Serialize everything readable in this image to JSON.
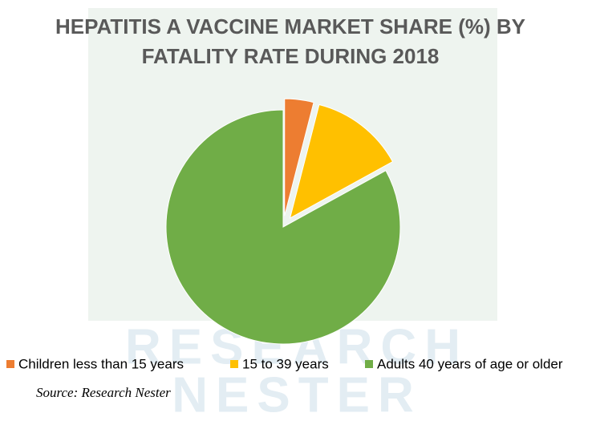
{
  "chart_data": {
    "type": "pie",
    "title": [
      "HEPATITIS A VACCINE MARKET SHARE (%) BY",
      "FATALITY RATE DURING 2018"
    ],
    "categories": [
      "Children less than 15 years",
      "15 to 39 years",
      "Adults 40 years of age or older"
    ],
    "values": [
      4,
      13,
      83
    ],
    "colors": [
      "#ed7d31",
      "#ffc000",
      "#70ad47"
    ],
    "source": "Source: Research Nester",
    "watermark": [
      "RESEARCH",
      "NESTER"
    ]
  }
}
